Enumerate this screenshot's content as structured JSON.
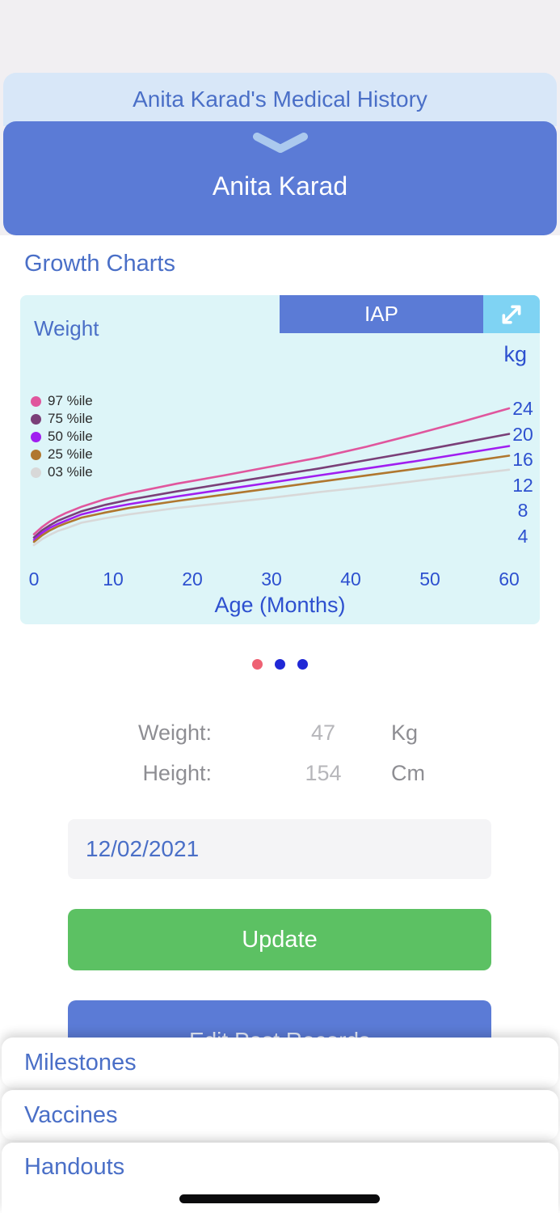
{
  "colors": {
    "page_bg": "#f1eff2",
    "header_bg": "#d8e7f8",
    "accent_blue": "#5b7bd6",
    "link_blue": "#4a6fc7",
    "axis_blue": "#2d50cf",
    "chart_bg": "#ddf5f8",
    "expand_bg": "#7fd3f3",
    "green": "#5cc163",
    "label_gray": "#8e8e93",
    "value_gray": "#b6b6ba",
    "input_bg": "#f4f4f6",
    "chevron_blue": "#abc9ee"
  },
  "header": {
    "title": "Anita Karad's Medical History",
    "patient_name": "Anita Karad"
  },
  "icons": {
    "collapse": "chevron-down",
    "fullscreen": "expand-diagonal-arrows"
  },
  "section": {
    "title": "Growth Charts"
  },
  "chart": {
    "measure_label": "Weight",
    "standard_button_label": "IAP",
    "unit_label": "kg",
    "x_axis_title": "Age (Months)"
  },
  "chart_data": {
    "type": "line",
    "title": "Weight",
    "xlabel": "Age (Months)",
    "ylabel": "kg",
    "grid": false,
    "legend_position": "upper left",
    "xlim": [
      0,
      60
    ],
    "ylim": [
      2,
      26
    ],
    "x_ticks": [
      0,
      10,
      20,
      30,
      40,
      50,
      60
    ],
    "y_ticks": [
      4,
      8,
      12,
      16,
      20,
      24
    ],
    "x": [
      0,
      1,
      2,
      3,
      4,
      6,
      9,
      12,
      18,
      24,
      30,
      36,
      42,
      48,
      54,
      60
    ],
    "series": [
      {
        "name": "97 %ile",
        "color": "#e0569d",
        "values": [
          4.3,
          5.4,
          6.3,
          7.0,
          7.6,
          8.6,
          9.8,
          10.7,
          12.2,
          13.5,
          14.9,
          16.3,
          18.0,
          19.9,
          21.9,
          24.0
        ]
      },
      {
        "name": "75 %ile",
        "color": "#7a3f78",
        "values": [
          3.8,
          4.9,
          5.7,
          6.4,
          6.9,
          7.9,
          8.9,
          9.7,
          11.0,
          12.2,
          13.4,
          14.6,
          15.9,
          17.2,
          18.6,
          20.0
        ]
      },
      {
        "name": "50 %ile",
        "color": "#a01ef0",
        "values": [
          3.4,
          4.5,
          5.3,
          5.9,
          6.4,
          7.4,
          8.3,
          9.0,
          10.2,
          11.3,
          12.4,
          13.5,
          14.6,
          15.7,
          16.9,
          18.1
        ]
      },
      {
        "name": "25 %ile",
        "color": "#b0772f",
        "values": [
          3.1,
          4.1,
          4.9,
          5.5,
          6.0,
          6.9,
          7.7,
          8.4,
          9.5,
          10.5,
          11.5,
          12.5,
          13.5,
          14.5,
          15.5,
          16.6
        ]
      },
      {
        "name": "03 %ile",
        "color": "#d8d8d8",
        "values": [
          2.6,
          3.5,
          4.2,
          4.8,
          5.2,
          6.1,
          6.8,
          7.4,
          8.4,
          9.2,
          10.0,
          10.9,
          11.7,
          12.6,
          13.5,
          14.4
        ]
      }
    ]
  },
  "pagination": {
    "dots": [
      {
        "color": "#ee6173",
        "active": true
      },
      {
        "color": "#2028d6",
        "active": false
      },
      {
        "color": "#2028d6",
        "active": false
      }
    ]
  },
  "measurements": {
    "rows": [
      {
        "label": "Weight:",
        "value": "47",
        "unit": "Kg"
      },
      {
        "label": "Height:",
        "value": "154",
        "unit": "Cm"
      }
    ]
  },
  "form": {
    "date_value": "12/02/2021",
    "update_button": "Update",
    "past_records_button": "Edit Past Records"
  },
  "accordion": {
    "items": [
      {
        "label": "Milestones"
      },
      {
        "label": "Vaccines"
      },
      {
        "label": "Handouts"
      }
    ]
  }
}
